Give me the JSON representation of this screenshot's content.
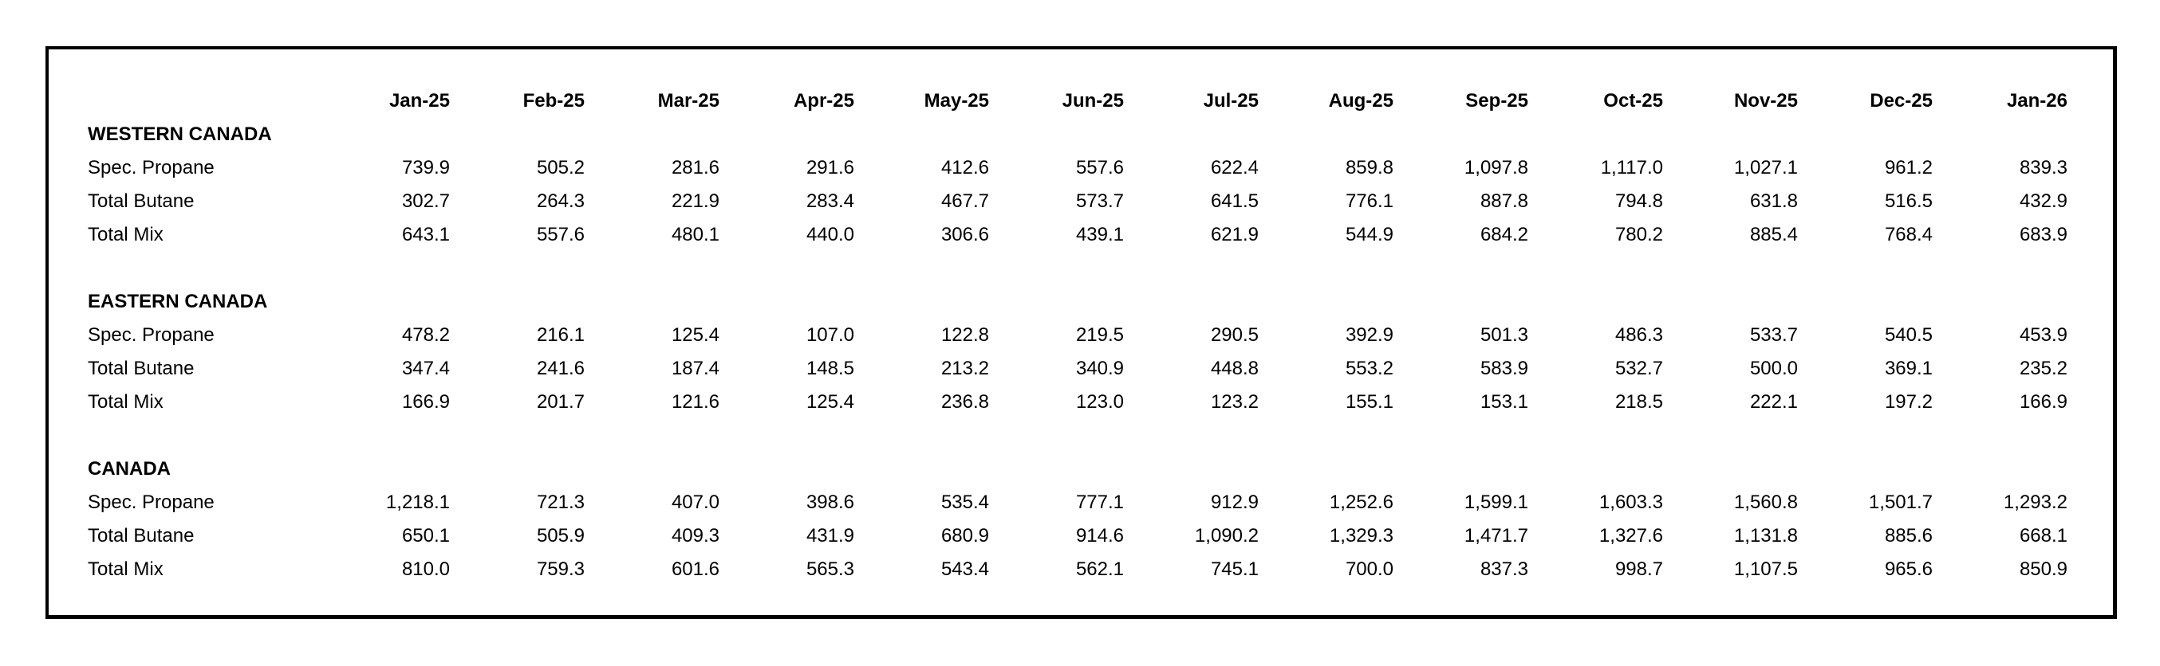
{
  "table": {
    "columns": [
      "Jan-25",
      "Feb-25",
      "Mar-25",
      "Apr-25",
      "May-25",
      "Jun-25",
      "Jul-25",
      "Aug-25",
      "Sep-25",
      "Oct-25",
      "Nov-25",
      "Dec-25",
      "Jan-26"
    ],
    "corner_label": "",
    "sections": [
      {
        "name": "WESTERN CANADA",
        "rows": [
          {
            "label": "Spec. Propane",
            "values": [
              "739.9",
              "505.2",
              "281.6",
              "291.6",
              "412.6",
              "557.6",
              "622.4",
              "859.8",
              "1,097.8",
              "1,117.0",
              "1,027.1",
              "961.2",
              "839.3"
            ]
          },
          {
            "label": "Total Butane",
            "values": [
              "302.7",
              "264.3",
              "221.9",
              "283.4",
              "467.7",
              "573.7",
              "641.5",
              "776.1",
              "887.8",
              "794.8",
              "631.8",
              "516.5",
              "432.9"
            ]
          },
          {
            "label": "Total Mix",
            "values": [
              "643.1",
              "557.6",
              "480.1",
              "440.0",
              "306.6",
              "439.1",
              "621.9",
              "544.9",
              "684.2",
              "780.2",
              "885.4",
              "768.4",
              "683.9"
            ]
          }
        ]
      },
      {
        "name": "EASTERN CANADA",
        "rows": [
          {
            "label": "Spec. Propane",
            "values": [
              "478.2",
              "216.1",
              "125.4",
              "107.0",
              "122.8",
              "219.5",
              "290.5",
              "392.9",
              "501.3",
              "486.3",
              "533.7",
              "540.5",
              "453.9"
            ]
          },
          {
            "label": "Total Butane",
            "values": [
              "347.4",
              "241.6",
              "187.4",
              "148.5",
              "213.2",
              "340.9",
              "448.8",
              "553.2",
              "583.9",
              "532.7",
              "500.0",
              "369.1",
              "235.2"
            ]
          },
          {
            "label": "Total Mix",
            "values": [
              "166.9",
              "201.7",
              "121.6",
              "125.4",
              "236.8",
              "123.0",
              "123.2",
              "155.1",
              "153.1",
              "218.5",
              "222.1",
              "197.2",
              "166.9"
            ]
          }
        ]
      },
      {
        "name": "CANADA",
        "rows": [
          {
            "label": "Spec. Propane",
            "values": [
              "1,218.1",
              "721.3",
              "407.0",
              "398.6",
              "535.4",
              "777.1",
              "912.9",
              "1,252.6",
              "1,599.1",
              "1,603.3",
              "1,560.8",
              "1,501.7",
              "1,293.2"
            ]
          },
          {
            "label": "Total Butane",
            "values": [
              "650.1",
              "505.9",
              "409.3",
              "431.9",
              "680.9",
              "914.6",
              "1,090.2",
              "1,329.3",
              "1,471.7",
              "1,327.6",
              "1,131.8",
              "885.6",
              "668.1"
            ]
          },
          {
            "label": "Total Mix",
            "values": [
              "810.0",
              "759.3",
              "601.6",
              "565.3",
              "543.4",
              "562.1",
              "745.1",
              "700.0",
              "837.3",
              "998.7",
              "1,107.5",
              "965.6",
              "850.9"
            ]
          }
        ]
      }
    ],
    "colors": {
      "text": "#000000",
      "background": "#ffffff",
      "border": "#000000"
    }
  }
}
